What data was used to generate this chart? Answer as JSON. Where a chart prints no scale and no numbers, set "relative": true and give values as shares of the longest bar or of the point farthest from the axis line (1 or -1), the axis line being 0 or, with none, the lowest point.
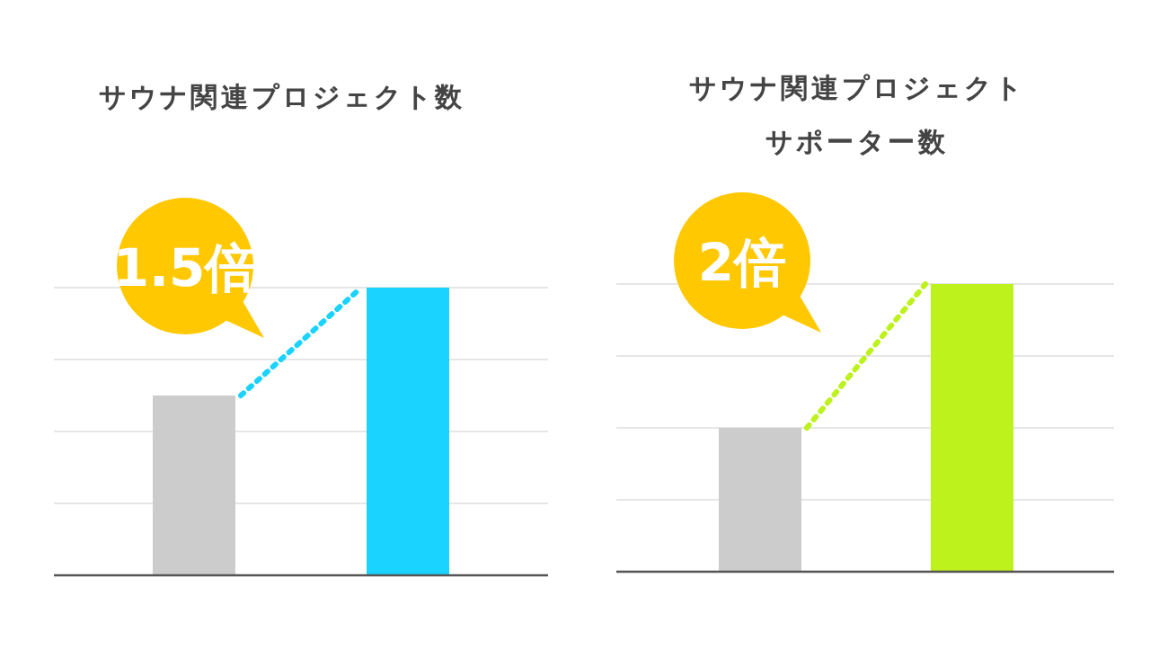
{
  "chart_data": [
    {
      "type": "bar",
      "title": "サウナ関連プロジェクト数",
      "categories": [
        null,
        null
      ],
      "values": [
        0.625,
        1
      ],
      "colors": [
        "#cccccc",
        "#1ad3ff"
      ],
      "relative": true,
      "grid": "y",
      "annotations": [
        "1.5倍"
      ]
    },
    {
      "type": "bar",
      "title": "サウナ関連プロジェクトサポーター数",
      "categories": [
        null,
        null
      ],
      "values": [
        0.5,
        1
      ],
      "colors": [
        "#cccccc",
        "#bdf21c"
      ],
      "relative": true,
      "grid": "y",
      "annotations": [
        "2倍"
      ]
    }
  ]
}
